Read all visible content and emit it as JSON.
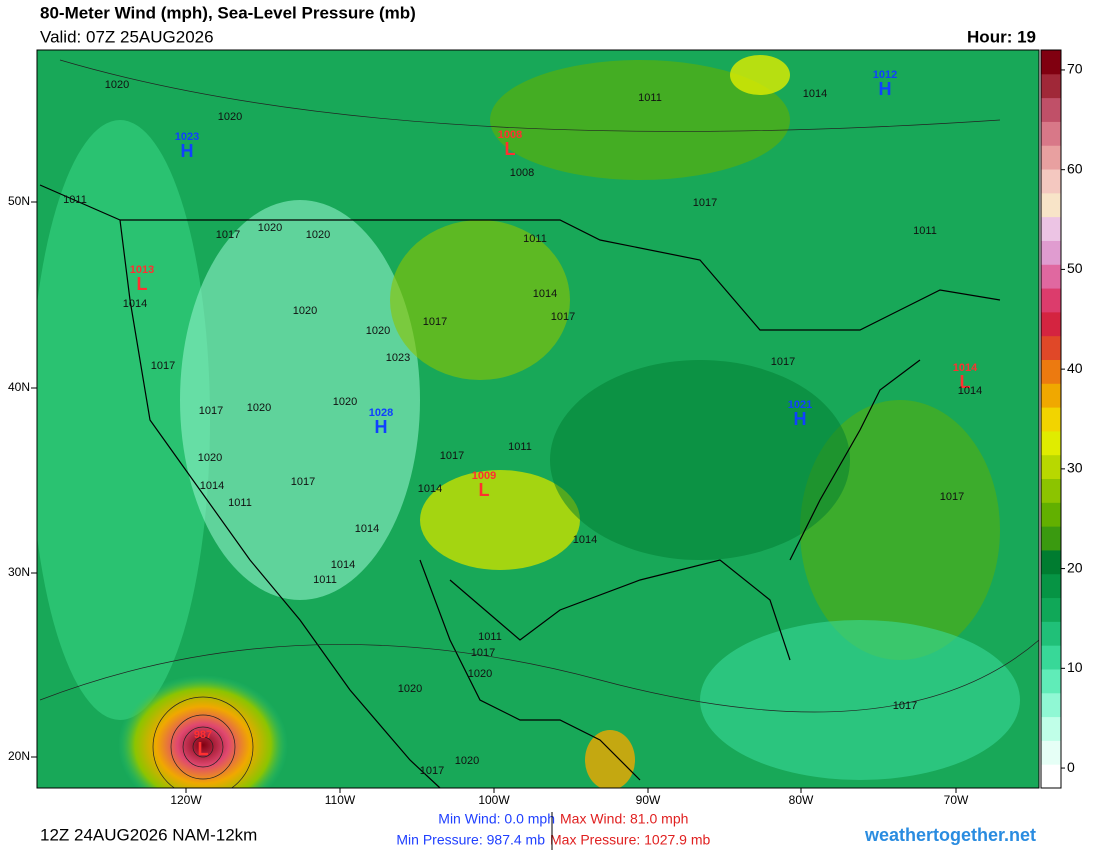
{
  "header": {
    "title": "80-Meter Wind (mph), Sea-Level Pressure (mb)",
    "valid": "Valid: 07Z 25AUG2026",
    "hour": "Hour: 19"
  },
  "map": {
    "lat_labels": [
      "50N",
      "40N",
      "30N",
      "20N"
    ],
    "lon_labels": [
      "120W",
      "110W",
      "100W",
      "90W",
      "80W",
      "70W"
    ],
    "centers": [
      {
        "symbol": "H",
        "pressure": "1023"
      },
      {
        "symbol": "L",
        "pressure": "1008"
      },
      {
        "symbol": "H",
        "pressure": "1012"
      },
      {
        "symbol": "L",
        "pressure": "1013"
      },
      {
        "symbol": "H",
        "pressure": "1028"
      },
      {
        "symbol": "H",
        "pressure": "1021"
      },
      {
        "symbol": "L",
        "pressure": "1014"
      },
      {
        "symbol": "L",
        "pressure": "1009"
      },
      {
        "symbol": "L",
        "pressure": "987"
      }
    ],
    "isobar_labels": [
      "1020",
      "1020",
      "1011",
      "1014",
      "1008",
      "1017",
      "1011",
      "1017",
      "1020",
      "1020",
      "1011",
      "1014",
      "1017",
      "1017",
      "1020",
      "1020",
      "1023",
      "1017",
      "1017",
      "1014",
      "1017",
      "1020",
      "1020",
      "1011",
      "1017",
      "1020",
      "1014",
      "1017",
      "1014",
      "1011",
      "1014",
      "1014",
      "1017",
      "1014",
      "1011",
      "1011",
      "1017",
      "1020",
      "1020",
      "1017",
      "1020",
      "1017",
      "1014",
      "1011"
    ]
  },
  "colorbar": {
    "lim": [
      -2,
      72
    ],
    "ticks": [
      0,
      10,
      20,
      30,
      40,
      50,
      60,
      70
    ],
    "colors": [
      "#ffffff",
      "#e6fff6",
      "#c0ffe8",
      "#90f8d4",
      "#60ecb8",
      "#38d898",
      "#20c078",
      "#10a858",
      "#069444",
      "#007c30",
      "#3a9a10",
      "#62b000",
      "#8cc400",
      "#b8d800",
      "#e0ec00",
      "#f2d400",
      "#f0a800",
      "#ec7a10",
      "#e04828",
      "#d42440",
      "#dc3c6c",
      "#e068a0",
      "#e09cd0",
      "#ecc4e4",
      "#f8e4c8",
      "#f4c8c0",
      "#e8a0a0",
      "#d87888",
      "#c05068",
      "#a02838",
      "#800010"
    ]
  },
  "footer": {
    "run": "12Z 24AUG2026 NAM-12km",
    "min_wind": "Min Wind:  0.0 mph",
    "max_wind": "Max Wind:  81.0 mph",
    "min_pressure": "Min Pressure: 987.4 mb",
    "max_pressure": "Max Pressure: 1027.9 mb",
    "site": "weathertogether.net"
  }
}
